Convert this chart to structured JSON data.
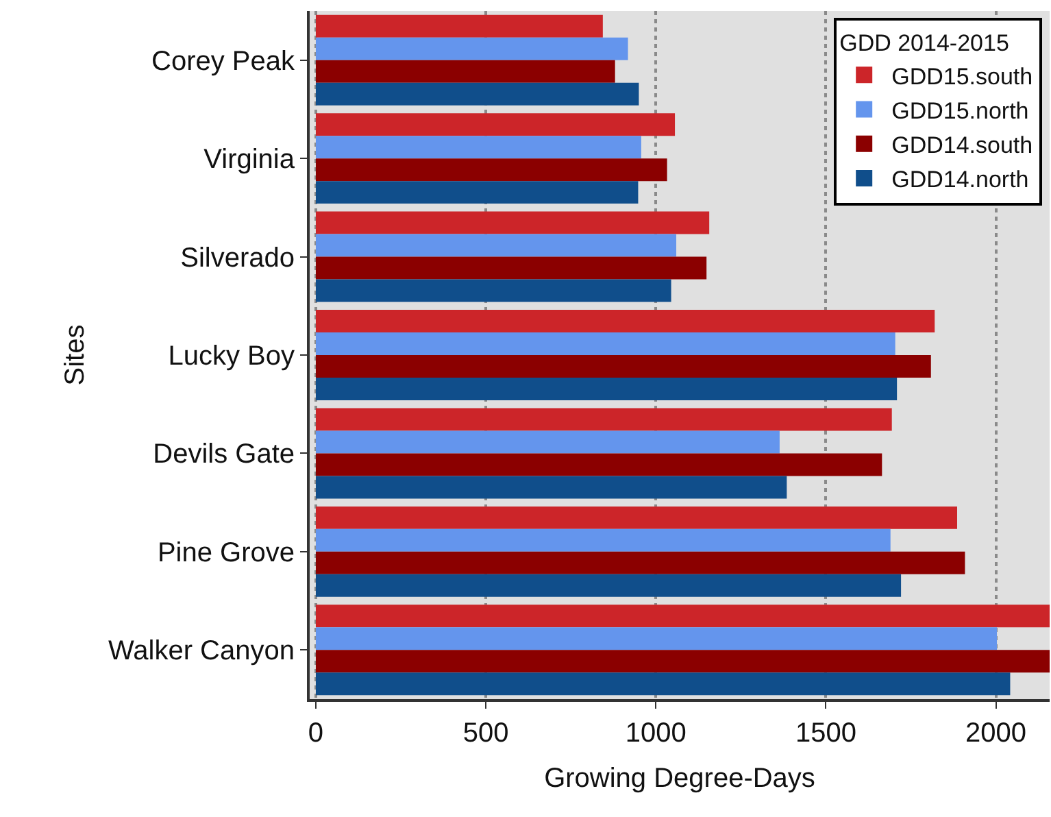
{
  "chart_data": {
    "type": "bar",
    "orientation": "horizontal",
    "xlabel": "Growing Degree-Days",
    "ylabel": "Sites",
    "legend_title": "GDD 2014-2015",
    "categories": [
      "Corey Peak",
      "Virginia",
      "Silverado",
      "Lucky Boy",
      "Devils Gate",
      "Pine Grove",
      "Walker Canyon"
    ],
    "series": [
      {
        "name": "GDD15.south",
        "color": "#cc2529",
        "values": [
          844,
          1056,
          1157,
          1820,
          1694,
          1886,
          2158
        ]
      },
      {
        "name": "GDD15.north",
        "color": "#6495ed",
        "values": [
          918,
          957,
          1060,
          1704,
          1364,
          1690,
          2003
        ]
      },
      {
        "name": "GDD14.south",
        "color": "#8b0000",
        "values": [
          880,
          1033,
          1149,
          1809,
          1665,
          1909,
          2158
        ]
      },
      {
        "name": "GDD14.north",
        "color": "#104e8b",
        "values": [
          950,
          948,
          1045,
          1709,
          1385,
          1721,
          2042
        ]
      }
    ],
    "xlim": [
      -18,
      2158
    ],
    "xticks": [
      0,
      500,
      1000,
      1500,
      2000
    ],
    "grid": "x",
    "legend": "top right"
  }
}
